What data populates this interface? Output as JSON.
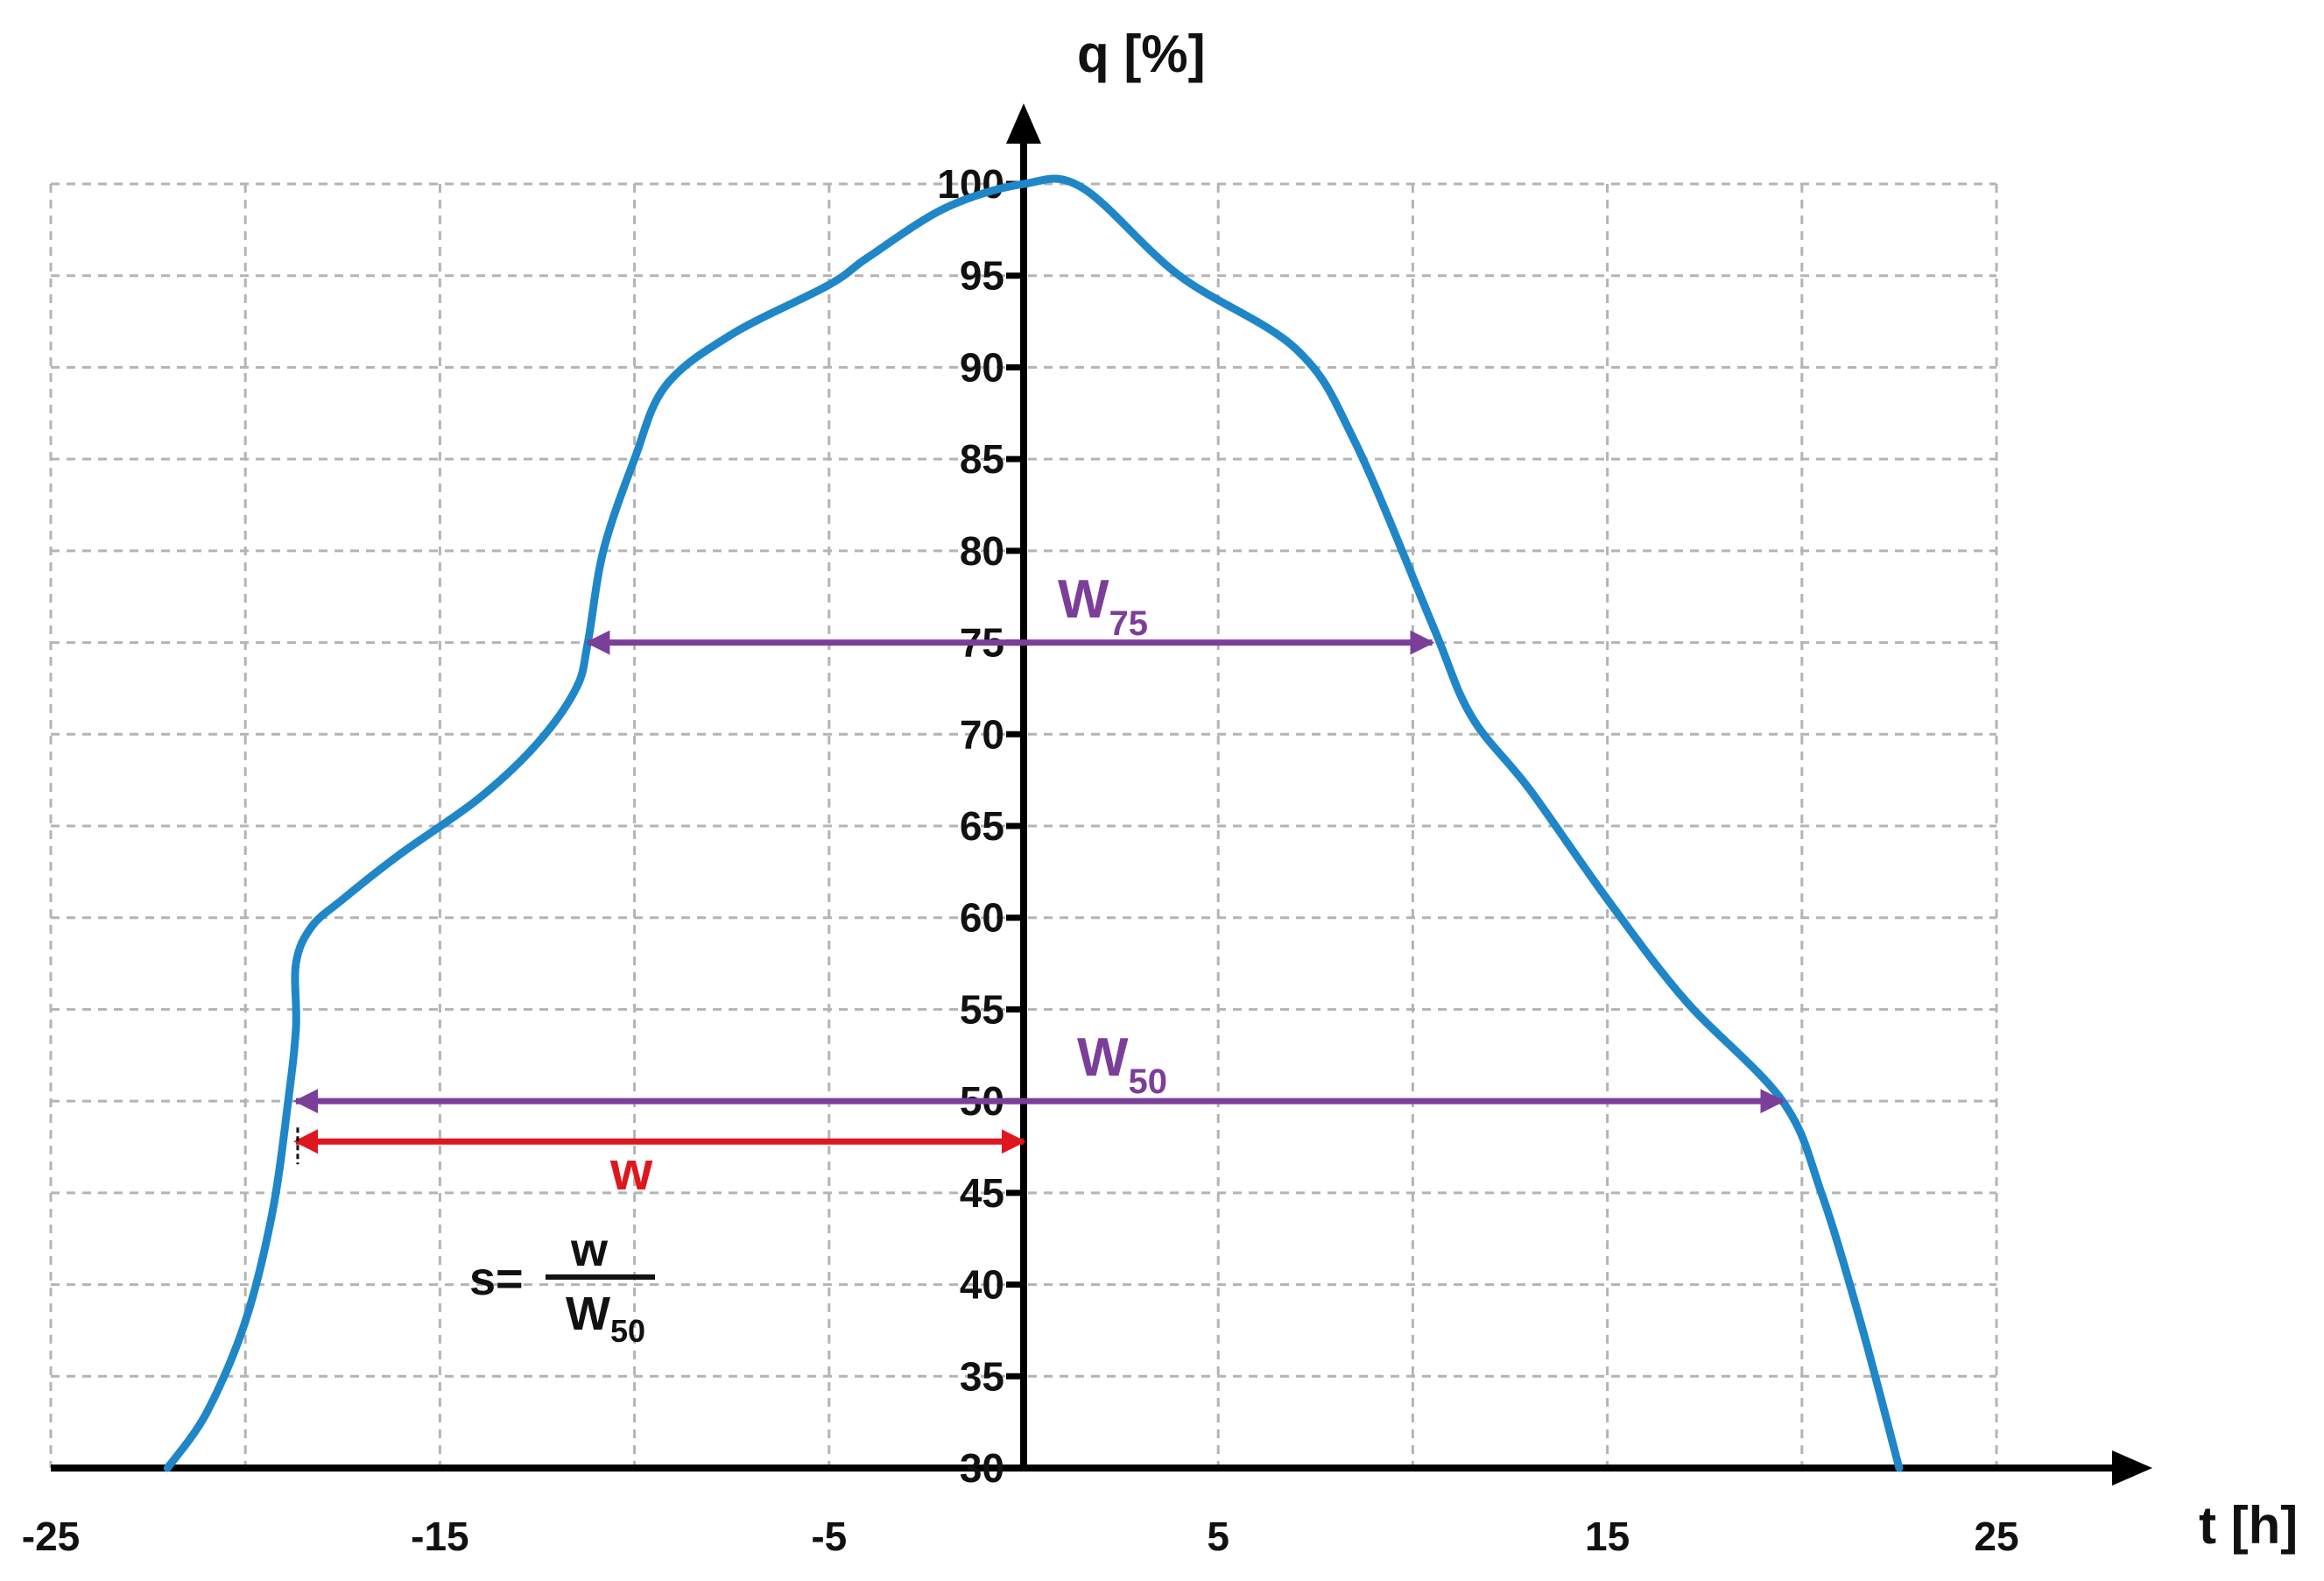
{
  "chart_data": {
    "type": "line",
    "xlabel": "t [h]",
    "ylabel": "q [%]",
    "xlim": [
      -25,
      25
    ],
    "ylim": [
      30,
      100
    ],
    "x_ticks": [
      "-25",
      "-15",
      "-5",
      "5",
      "15",
      "25"
    ],
    "x_tick_values": [
      -25,
      -15,
      -5,
      5,
      15,
      25
    ],
    "y_ticks": [
      "30",
      "35",
      "40",
      "45",
      "50",
      "55",
      "60",
      "65",
      "70",
      "75",
      "80",
      "85",
      "90",
      "95",
      "100"
    ],
    "y_tick_values": [
      30,
      35,
      40,
      45,
      50,
      55,
      60,
      65,
      70,
      75,
      80,
      85,
      90,
      95,
      100
    ],
    "grid": true,
    "series": [
      {
        "name": "q",
        "color": "#1f86c8",
        "x": [
          -22,
          -21,
          -20,
          -19.3,
          -18.9,
          -18.7,
          -18.7,
          -18.3,
          -17.5,
          -16,
          -14,
          -12.5,
          -11.5,
          -11.2,
          -10.8,
          -10,
          -9.2,
          -7.5,
          -5,
          -4,
          -2,
          0,
          1.5,
          4,
          7,
          8.5,
          10.5,
          11.5,
          13,
          15,
          17,
          19.5,
          20.5,
          21.5,
          22.5
        ],
        "y": [
          30,
          33,
          38,
          44,
          50,
          54,
          57.5,
          59.5,
          61,
          63.5,
          66.5,
          69.5,
          72.5,
          75,
          80,
          85,
          89,
          91.8,
          94.5,
          96,
          98.7,
          100,
          99.8,
          95,
          91,
          86,
          76,
          71,
          67,
          61,
          55.5,
          50,
          45,
          38,
          30
        ]
      }
    ],
    "annotations": [
      {
        "label_main": "W",
        "label_sub": "75",
        "y": 75,
        "x_start": -11.2,
        "x_end": 10.5,
        "color": "#7b3f9a"
      },
      {
        "label_main": "W",
        "label_sub": "50",
        "y": 50,
        "x_start": -18.7,
        "x_end": 19.5,
        "color": "#7b3f9a"
      },
      {
        "label_main": "w",
        "y": 47.8,
        "x_start": -18.7,
        "x_end": 0,
        "color": "#e0161e"
      }
    ],
    "formula": {
      "lhs": "s=",
      "numerator": "w",
      "denominator_main": "W",
      "denominator_sub": "50"
    },
    "colors": {
      "axis": "#000000",
      "grid": "#b4b4b4",
      "curve": "#1f86c8",
      "width_arrows": "#7b3f9a",
      "offset_arrow": "#e0161e"
    }
  }
}
